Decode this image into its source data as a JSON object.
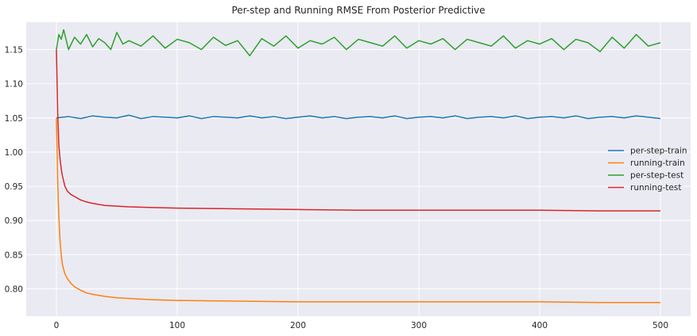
{
  "chart_data": {
    "type": "line",
    "title": "Per-step and Running RMSE From Posterior Predictive",
    "xlabel": "",
    "ylabel": "",
    "xlim": [
      -25,
      525
    ],
    "ylim": [
      0.76,
      1.19
    ],
    "x_ticks": [
      0,
      100,
      200,
      300,
      400,
      500
    ],
    "x_tick_labels": [
      "0",
      "100",
      "200",
      "300",
      "400",
      "500"
    ],
    "y_ticks": [
      0.8,
      0.85,
      0.9,
      0.95,
      1.0,
      1.05,
      1.1,
      1.15
    ],
    "y_tick_labels": [
      "0.80",
      "0.85",
      "0.90",
      "0.95",
      "1.00",
      "1.05",
      "1.10",
      "1.15"
    ],
    "grid": true,
    "legend_position": "center-right",
    "background": "#eaeaf2",
    "series": [
      {
        "name": "per-step-train",
        "color": "#1f77b4",
        "x": [
          0,
          10,
          20,
          30,
          40,
          50,
          60,
          70,
          80,
          90,
          100,
          110,
          120,
          130,
          140,
          150,
          160,
          170,
          180,
          190,
          200,
          210,
          220,
          230,
          240,
          250,
          260,
          270,
          280,
          290,
          300,
          310,
          320,
          330,
          340,
          350,
          360,
          370,
          380,
          390,
          400,
          410,
          420,
          430,
          440,
          450,
          460,
          470,
          480,
          490,
          500
        ],
        "y": [
          1.05,
          1.052,
          1.049,
          1.053,
          1.051,
          1.05,
          1.054,
          1.049,
          1.052,
          1.051,
          1.05,
          1.053,
          1.049,
          1.052,
          1.051,
          1.05,
          1.053,
          1.05,
          1.052,
          1.049,
          1.051,
          1.053,
          1.05,
          1.052,
          1.049,
          1.051,
          1.052,
          1.05,
          1.053,
          1.049,
          1.051,
          1.052,
          1.05,
          1.053,
          1.049,
          1.051,
          1.052,
          1.05,
          1.053,
          1.049,
          1.051,
          1.052,
          1.05,
          1.053,
          1.049,
          1.051,
          1.052,
          1.05,
          1.053,
          1.051,
          1.049
        ]
      },
      {
        "name": "running-train",
        "color": "#ff7f0e",
        "x": [
          0,
          1,
          2,
          3,
          4,
          5,
          7,
          9,
          12,
          15,
          20,
          25,
          30,
          40,
          50,
          60,
          80,
          100,
          150,
          200,
          250,
          300,
          350,
          400,
          450,
          500
        ],
        "y": [
          1.05,
          0.96,
          0.905,
          0.87,
          0.85,
          0.835,
          0.822,
          0.815,
          0.808,
          0.803,
          0.798,
          0.794,
          0.792,
          0.789,
          0.787,
          0.786,
          0.784,
          0.783,
          0.782,
          0.781,
          0.781,
          0.781,
          0.781,
          0.781,
          0.78,
          0.78
        ]
      },
      {
        "name": "per-step-test",
        "color": "#2ca02c",
        "x": [
          0,
          2,
          4,
          6,
          10,
          15,
          20,
          25,
          30,
          35,
          40,
          45,
          50,
          55,
          60,
          70,
          80,
          90,
          100,
          110,
          120,
          130,
          140,
          150,
          160,
          170,
          180,
          190,
          200,
          210,
          220,
          230,
          240,
          250,
          260,
          270,
          280,
          290,
          300,
          310,
          320,
          330,
          340,
          350,
          360,
          370,
          380,
          390,
          400,
          410,
          420,
          430,
          440,
          450,
          460,
          470,
          480,
          490,
          500
        ],
        "y": [
          1.15,
          1.172,
          1.165,
          1.179,
          1.15,
          1.168,
          1.158,
          1.172,
          1.154,
          1.166,
          1.16,
          1.15,
          1.175,
          1.158,
          1.163,
          1.155,
          1.17,
          1.152,
          1.165,
          1.16,
          1.15,
          1.168,
          1.156,
          1.163,
          1.141,
          1.166,
          1.155,
          1.17,
          1.152,
          1.163,
          1.158,
          1.168,
          1.15,
          1.165,
          1.16,
          1.155,
          1.17,
          1.152,
          1.163,
          1.158,
          1.166,
          1.15,
          1.165,
          1.16,
          1.155,
          1.17,
          1.152,
          1.163,
          1.158,
          1.166,
          1.15,
          1.165,
          1.16,
          1.147,
          1.168,
          1.152,
          1.172,
          1.155,
          1.16
        ]
      },
      {
        "name": "running-test",
        "color": "#d62728",
        "x": [
          0,
          1,
          2,
          3,
          4,
          5,
          7,
          9,
          12,
          15,
          20,
          25,
          30,
          40,
          50,
          60,
          80,
          100,
          150,
          200,
          250,
          300,
          350,
          400,
          450,
          500
        ],
        "y": [
          1.15,
          1.06,
          1.01,
          0.99,
          0.975,
          0.965,
          0.95,
          0.943,
          0.938,
          0.935,
          0.93,
          0.927,
          0.925,
          0.922,
          0.921,
          0.92,
          0.919,
          0.918,
          0.917,
          0.916,
          0.915,
          0.915,
          0.915,
          0.915,
          0.914,
          0.914
        ]
      }
    ]
  }
}
